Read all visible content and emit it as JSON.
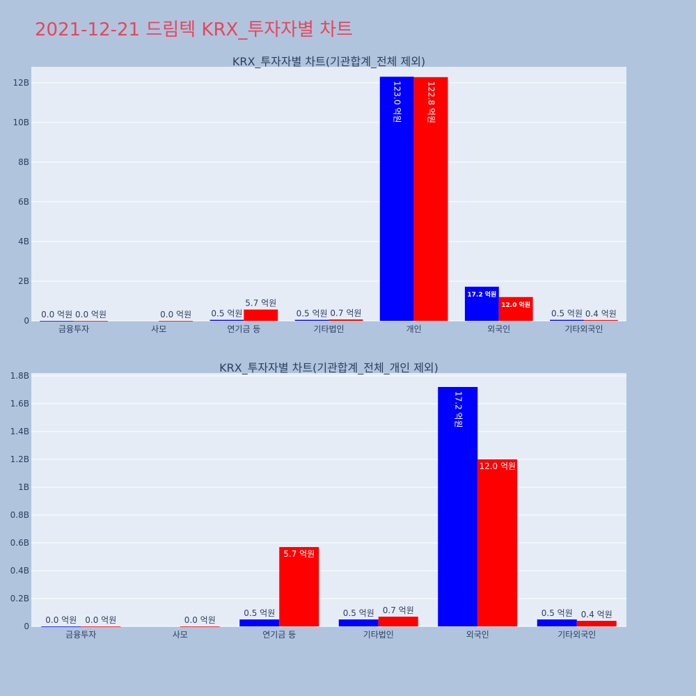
{
  "page_title": "2021-12-21 드림텍 KRX_투자자별 차트",
  "colors": {
    "series_a": "#0000ff",
    "series_b": "#ff0000",
    "title": "#e8455a",
    "background": "#b0c4de",
    "plot_background": "#e5ecf6"
  },
  "chart_data": [
    {
      "type": "bar",
      "title": "KRX_투자자별 차트(기관합계_전체 제외)",
      "categories": [
        "금융투자",
        "사모",
        "연기금 등",
        "기타법인",
        "개인",
        "외국인",
        "기타외국인"
      ],
      "ylim": [
        0,
        12.8
      ],
      "yticks": [
        "0",
        "2B",
        "4B",
        "6B",
        "8B",
        "10B",
        "12B"
      ],
      "ytick_values": [
        0,
        2,
        4,
        6,
        8,
        10,
        12
      ],
      "series": [
        {
          "color": "#0000ff",
          "values": [
            0.0,
            null,
            0.05,
            0.05,
            12.3,
            1.72,
            0.05
          ],
          "labels": [
            "0.0 억원",
            "",
            "0.5 억원",
            "0.5 억원",
            "123.0 억원",
            "17.2 억원",
            "0.5 억원"
          ]
        },
        {
          "color": "#ff0000",
          "values": [
            0.0,
            0.0,
            0.57,
            0.07,
            12.28,
            1.2,
            0.04
          ],
          "labels": [
            "0.0 억원",
            "0.0 억원",
            "5.7 억원",
            "0.7 억원",
            "122.8 억원",
            "12.0 억원",
            "0.4 억원"
          ]
        }
      ],
      "grid": true,
      "legend": "none"
    },
    {
      "type": "bar",
      "title": "KRX_투자자별 차트(기관합계_전체_개인 제외)",
      "categories": [
        "금융투자",
        "사모",
        "연기금 등",
        "기타법인",
        "외국인",
        "기타외국인"
      ],
      "ylim": [
        0,
        1.82
      ],
      "yticks": [
        "0",
        "0.2B",
        "0.4B",
        "0.6B",
        "0.8B",
        "1B",
        "1.2B",
        "1.4B",
        "1.6B",
        "1.8B"
      ],
      "ytick_values": [
        0,
        0.2,
        0.4,
        0.6,
        0.8,
        1.0,
        1.2,
        1.4,
        1.6,
        1.8
      ],
      "series": [
        {
          "color": "#0000ff",
          "values": [
            0.0,
            null,
            0.05,
            0.05,
            1.72,
            0.05
          ],
          "labels": [
            "0.0 억원",
            "",
            "0.5 억원",
            "0.5 억원",
            "17.2 억원",
            "0.5 억원"
          ]
        },
        {
          "color": "#ff0000",
          "values": [
            0.0,
            0.0,
            0.57,
            0.07,
            1.2,
            0.04
          ],
          "labels": [
            "0.0 억원",
            "0.0 억원",
            "5.7 억원",
            "0.7 억원",
            "12.0 억원",
            "0.4 억원"
          ]
        }
      ],
      "grid": true,
      "legend": "none"
    }
  ]
}
